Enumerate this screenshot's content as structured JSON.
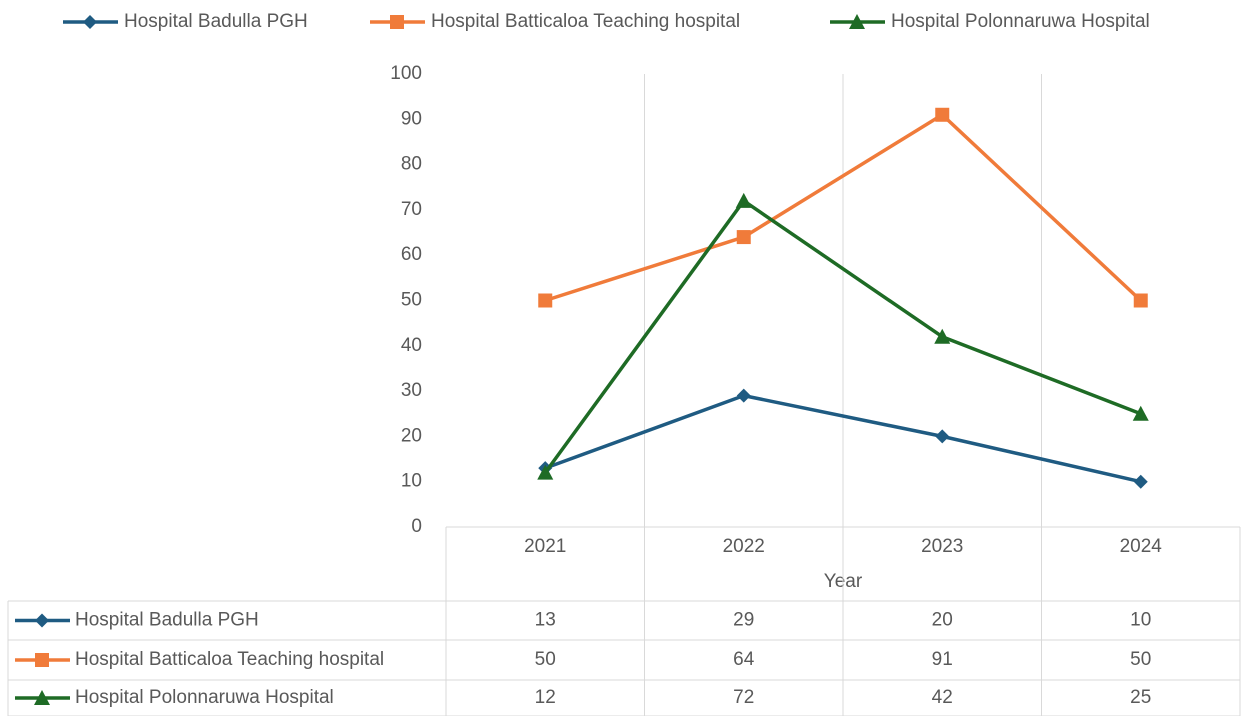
{
  "chart_data": {
    "type": "line",
    "x_label": "Year",
    "categories": [
      "2021",
      "2022",
      "2023",
      "2024"
    ],
    "series": [
      {
        "name": "Hospital Badulla PGH",
        "color": "#1f5b82",
        "marker": "diamond",
        "values": [
          13,
          29,
          20,
          10
        ]
      },
      {
        "name": "Hospital Batticaloa Teaching hospital",
        "color": "#f07b3a",
        "marker": "square",
        "values": [
          50,
          64,
          91,
          50
        ]
      },
      {
        "name": "Hospital Polonnaruwa Hospital",
        "color": "#1e6b25",
        "marker": "triangle",
        "values": [
          12,
          72,
          42,
          25
        ]
      }
    ],
    "ylim": [
      0,
      100
    ],
    "yticks": [
      0,
      10,
      20,
      30,
      40,
      50,
      60,
      70,
      80,
      90,
      100
    ],
    "legend": "top",
    "data_table": true
  }
}
